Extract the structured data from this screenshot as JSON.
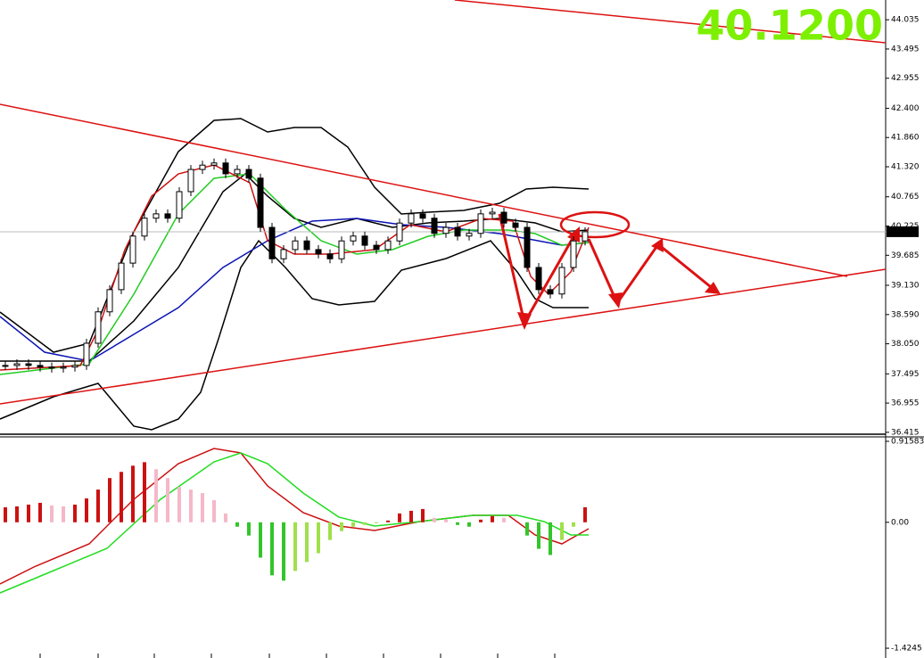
{
  "chart_data": [
    {
      "type": "candlestick",
      "values": [
        37.65,
        37.68,
        37.65,
        37.62,
        37.6,
        37.62,
        37.65,
        38.06,
        38.64,
        39.05,
        39.54,
        40.04,
        40.37,
        40.45,
        40.37,
        40.86,
        41.27,
        41.35,
        41.39,
        41.19,
        41.27,
        41.11,
        40.2,
        39.62,
        39.79,
        39.95,
        39.79,
        39.71,
        39.62,
        39.95,
        40.04,
        39.87,
        39.79,
        39.95,
        40.28,
        40.45,
        40.37,
        40.09,
        40.2,
        40.04,
        40.09,
        40.45,
        40.48,
        40.28,
        40.2,
        39.46,
        39.05,
        38.97,
        39.46,
        39.95,
        40.12
      ],
      "ylim": [
        36.38,
        44.4
      ],
      "yticks": [
        44.035,
        43.495,
        42.955,
        {
          "value": 42.4,
          "label": "42.400"
        },
        {
          "value": 41.86,
          "label": "41.860"
        },
        {
          "value": 41.32,
          "label": "41.320"
        },
        40.765,
        40.225,
        39.685,
        {
          "value": 39.13,
          "label": "39.130"
        },
        {
          "value": 38.59,
          "label": "38.590"
        },
        {
          "value": 38.05,
          "label": "38.050"
        },
        37.495,
        36.955,
        36.415
      ],
      "color_up": "#ffffff",
      "color_down": "#000000",
      "annotation": "40.1200",
      "last_price": {
        "value": 40.12,
        "label": "40.120"
      }
    },
    {
      "type": "bar",
      "values": [
        0.17,
        0.18,
        0.2,
        0.22,
        0.19,
        0.18,
        0.2,
        0.27,
        0.37,
        0.5,
        0.57,
        0.64,
        0.68,
        0.6,
        0.5,
        0.4,
        0.37,
        0.33,
        0.25,
        0.1,
        -0.05,
        -0.15,
        -0.4,
        -0.6,
        -0.66,
        -0.55,
        -0.45,
        -0.35,
        -0.2,
        -0.1,
        -0.05,
        -0.03,
        -0.01,
        0.02,
        0.1,
        0.13,
        0.15,
        0.05,
        0.03,
        -0.03,
        -0.05,
        0.03,
        0.07,
        0.05,
        0,
        -0.15,
        -0.3,
        -0.37,
        -0.2,
        -0.05,
        0.17
      ],
      "ylim": [
        -1.535,
        0.966
      ],
      "yticks": [
        0.91583,
        {
          "value": 0,
          "label": "0.00"
        },
        -1.4245
      ],
      "colors": [
        "#cc1111",
        "#f4b8c8",
        "#33c52a",
        "#9fe04a"
      ]
    }
  ]
}
